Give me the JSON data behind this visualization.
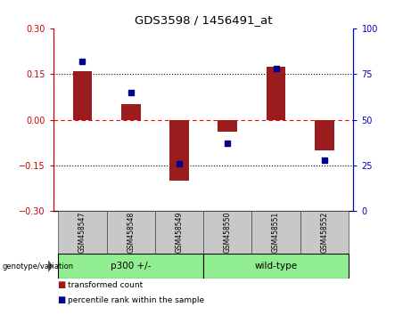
{
  "title": "GDS3598 / 1456491_at",
  "samples": [
    "GSM458547",
    "GSM458548",
    "GSM458549",
    "GSM458550",
    "GSM458551",
    "GSM458552"
  ],
  "transformed_count": [
    0.16,
    0.05,
    -0.2,
    -0.04,
    0.175,
    -0.1
  ],
  "percentile_rank": [
    82,
    65,
    26,
    37,
    78,
    28
  ],
  "bar_color": "#9B1C1C",
  "dot_color": "#00008B",
  "ylim_left": [
    -0.3,
    0.3
  ],
  "ylim_right": [
    0,
    100
  ],
  "yticks_left": [
    -0.3,
    -0.15,
    0,
    0.15,
    0.3
  ],
  "yticks_right": [
    0,
    25,
    50,
    75,
    100
  ],
  "left_axis_color": "#CC0000",
  "right_axis_color": "#0000CC",
  "bar_width": 0.4,
  "background_color": "#ffffff",
  "sample_bg": "#C8C8C8",
  "group_bg": "#90EE90",
  "groups": [
    {
      "label": "p300 +/-",
      "start": 0,
      "end": 2
    },
    {
      "label": "wild-type",
      "start": 3,
      "end": 5
    }
  ],
  "legend_items": [
    {
      "label": "transformed count",
      "color": "#9B1C1C"
    },
    {
      "label": "percentile rank within the sample",
      "color": "#00008B"
    }
  ],
  "geno_label": "genotype/variation"
}
